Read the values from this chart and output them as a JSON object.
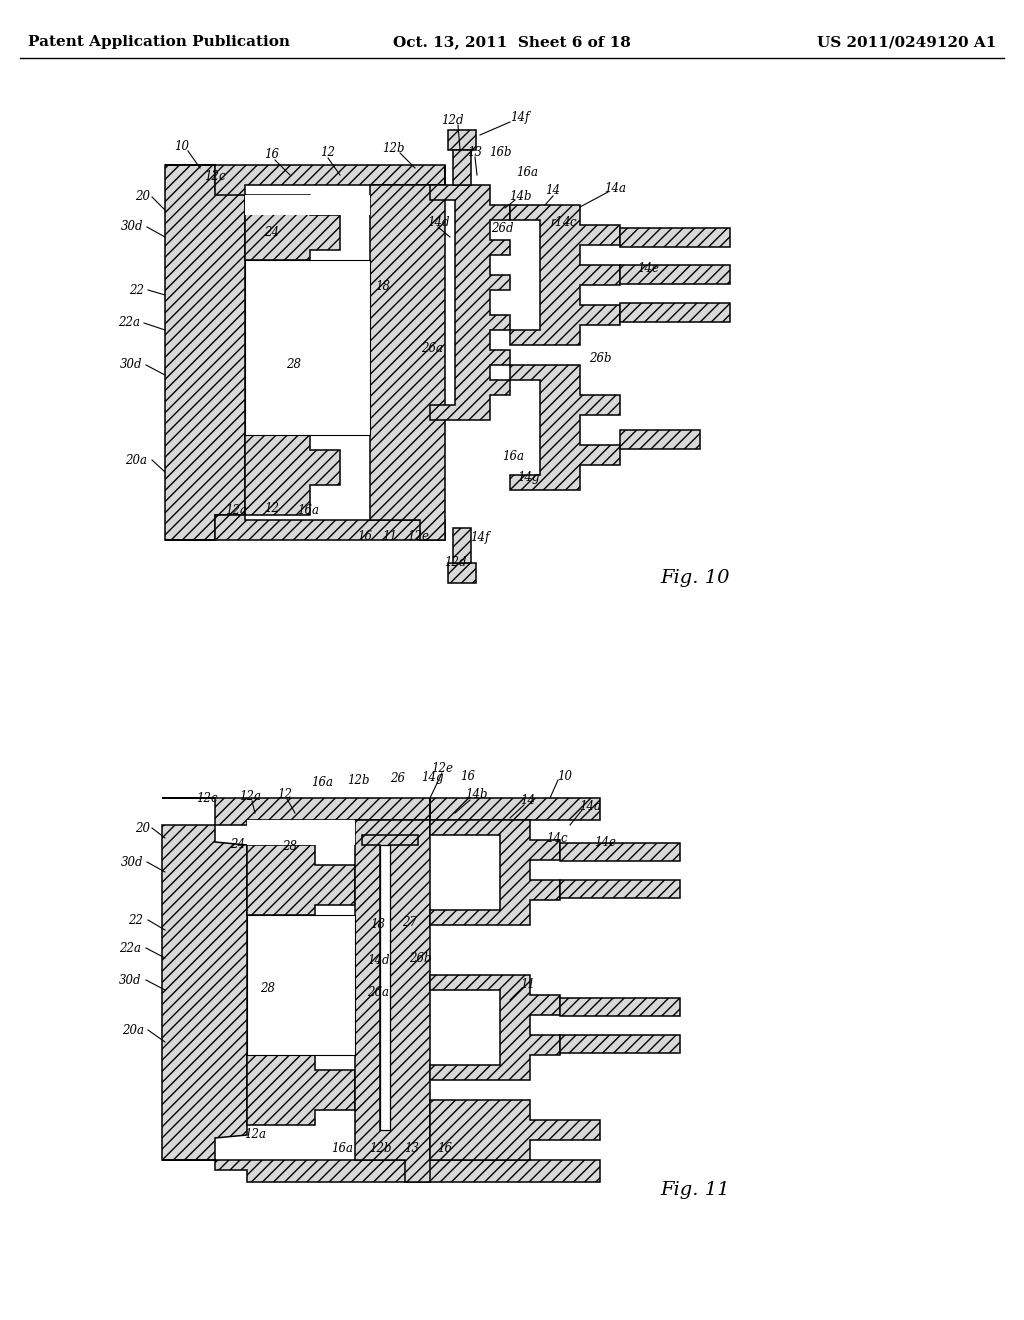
{
  "background_color": "#ffffff",
  "header_left": "Patent Application Publication",
  "header_center": "Oct. 13, 2011  Sheet 6 of 18",
  "header_right": "US 2011/0249120 A1",
  "header_fontsize": 11,
  "fig10_label": "Fig. 10",
  "fig11_label": "Fig. 11",
  "hatch_fc": "#d8d8d8",
  "hatch_pattern": "///",
  "line_color": "#000000"
}
